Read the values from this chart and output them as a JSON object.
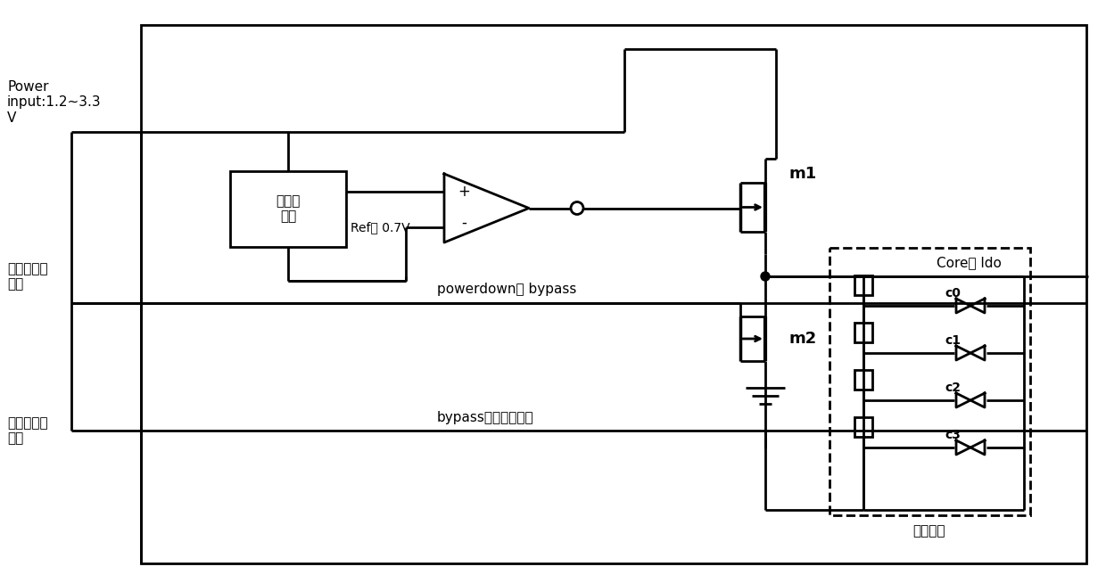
{
  "bg_color": "#ffffff",
  "line_color": "#000000",
  "lw": 2.0,
  "fig_width": 12.4,
  "fig_height": 6.54,
  "labels": {
    "power_input": "Power\ninput:1.2~3.3\nV",
    "signal1": "第一信号输\n入端",
    "signal2": "第二信号输\n入端",
    "ref_box": "基准电\n压源",
    "ref_label": "Ref： 0.7V",
    "m1": "m1",
    "m2": "m2",
    "core_ldo": "Core： ldo",
    "powerdown": "powerdown： bypass",
    "bypass_ext": "bypass模式外接电源",
    "ctrl_module": "控压模块",
    "c0": "c0",
    "c1": "c1",
    "c2": "c2",
    "c3": "c3",
    "plus": "+",
    "minus": "-"
  }
}
